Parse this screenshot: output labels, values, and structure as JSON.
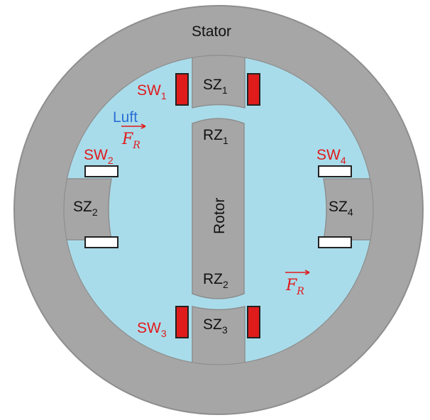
{
  "labels": {
    "stator": "Stator",
    "rotor": "Rotor",
    "luft": "Luft",
    "sz1_main": "SZ",
    "sz1_sub": "1",
    "sz2_main": "SZ",
    "sz2_sub": "2",
    "sz3_main": "SZ",
    "sz3_sub": "3",
    "sz4_main": "SZ",
    "sz4_sub": "4",
    "rz1_main": "RZ",
    "rz1_sub": "1",
    "rz2_main": "RZ",
    "rz2_sub": "2",
    "sw1_main": "SW",
    "sw1_sub": "1",
    "sw2_main": "SW",
    "sw2_sub": "2",
    "sw3_main": "SW",
    "sw3_sub": "3",
    "sw4_main": "SW",
    "sw4_sub": "4",
    "fr1_main": "F",
    "fr1_sub": "R",
    "fr2_main": "F",
    "fr2_sub": "R"
  },
  "colors": {
    "stator": "#a6a6a6",
    "air_gap": "#a9dcea",
    "rotor": "#a6a6a6",
    "coil_red": "#e01b1b",
    "coil_white": "#ffffff",
    "outline": "#5a5a5a",
    "label_red": "#e0191b",
    "label_blue": "#2a6fd6"
  }
}
